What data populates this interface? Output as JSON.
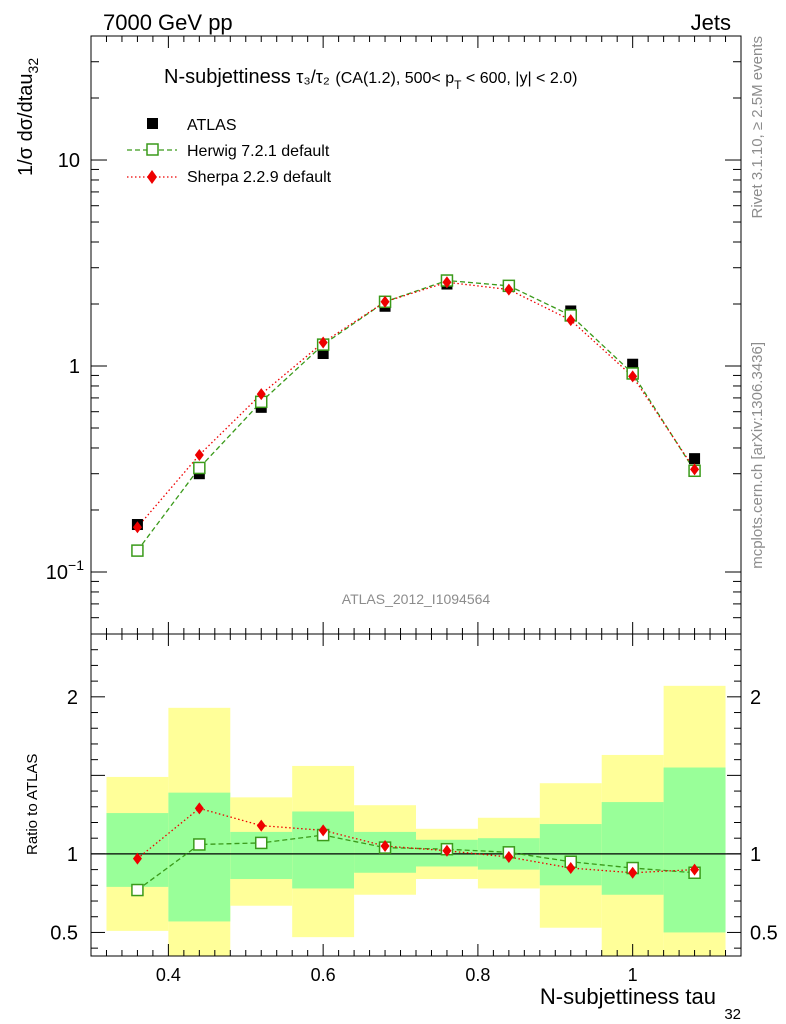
{
  "header": {
    "left": "7000 GeV pp",
    "right": "Jets"
  },
  "side": {
    "rivet": "Rivet 3.1.10, ≥ 2.5M events",
    "mcplots": "mcplots.cern.ch [arXiv:1306.3436]"
  },
  "colors": {
    "atlas": "#000000",
    "herwig": "#3a9a1a",
    "sherpa": "#ee0000",
    "band_inner": "#99ff99",
    "band_outer": "#ffff99"
  },
  "chart_data": [
    {
      "type": "scatter",
      "title": "N-subjettiness τ₃/τ₂ (CA(1.2), 500< p_T < 600, |y| < 2.0)",
      "title_parts": {
        "main": "N-subjettiness",
        "ratio": "τ₃/τ₂",
        "pre": "(CA(1.2), 500< p",
        "sub": "T",
        "post": " < 600, |y| < 2.0)"
      },
      "ylabel": "1/σ dσ/dtau",
      "ylabel_sub": "32",
      "xlabel": "N-subjettiness tau",
      "xlabel_sub": "32",
      "yscale": "log",
      "ylim": [
        0.05,
        40
      ],
      "xlim": [
        0.3,
        1.14
      ],
      "yticks": [
        {
          "v": 0.1,
          "base": "10",
          "exp": "−1"
        },
        {
          "v": 1,
          "base": "1",
          "exp": ""
        },
        {
          "v": 10,
          "base": "10",
          "exp": ""
        }
      ],
      "watermark": "ATLAS_2012_I1094564",
      "legend_position": "top-left",
      "x": [
        0.36,
        0.44,
        0.52,
        0.6,
        0.68,
        0.76,
        0.84,
        0.92,
        1.0,
        1.08
      ],
      "series": [
        {
          "name": "ATLAS",
          "marker": "filled-square",
          "values": [
            0.17,
            0.3,
            0.63,
            1.15,
            1.95,
            2.5,
            2.45,
            1.85,
            1.02,
            0.355
          ]
        },
        {
          "name": "Herwig 7.2.1 default",
          "marker": "open-square",
          "line": "dashed",
          "values": [
            0.127,
            0.32,
            0.67,
            1.27,
            2.05,
            2.6,
            2.45,
            1.76,
            0.92,
            0.31
          ]
        },
        {
          "name": "Sherpa 2.2.9 default",
          "marker": "diamond",
          "line": "dotted",
          "values": [
            0.165,
            0.37,
            0.73,
            1.3,
            2.05,
            2.55,
            2.35,
            1.67,
            0.89,
            0.315
          ]
        }
      ]
    },
    {
      "type": "scatter",
      "ylabel": "Ratio to ATLAS",
      "xlabel": "N-subjettiness tau",
      "ylim": [
        0.35,
        2.4
      ],
      "xlim": [
        0.3,
        1.14
      ],
      "xticks": [
        {
          "v": 0.4,
          "label": "0.4"
        },
        {
          "v": 0.6,
          "label": "0.6"
        },
        {
          "v": 0.8,
          "label": "0.8"
        },
        {
          "v": 1.0,
          "label": "1"
        }
      ],
      "yticks": [
        {
          "v": 0.5,
          "label": "0.5"
        },
        {
          "v": 1,
          "label": "1"
        },
        {
          "v": 2,
          "label": "2"
        }
      ],
      "bins": [
        {
          "lo": 0.32,
          "hi": 0.4,
          "inner": [
            0.79,
            1.26
          ],
          "outer": [
            0.51,
            1.49
          ]
        },
        {
          "lo": 0.4,
          "hi": 0.48,
          "inner": [
            0.57,
            1.39
          ],
          "outer": [
            0.3,
            1.93
          ]
        },
        {
          "lo": 0.48,
          "hi": 0.56,
          "inner": [
            0.84,
            1.14
          ],
          "outer": [
            0.67,
            1.36
          ]
        },
        {
          "lo": 0.56,
          "hi": 0.64,
          "inner": [
            0.78,
            1.27
          ],
          "outer": [
            0.47,
            1.56
          ]
        },
        {
          "lo": 0.64,
          "hi": 0.72,
          "inner": [
            0.88,
            1.14
          ],
          "outer": [
            0.74,
            1.31
          ]
        },
        {
          "lo": 0.72,
          "hi": 0.8,
          "inner": [
            0.92,
            1.09
          ],
          "outer": [
            0.84,
            1.16
          ]
        },
        {
          "lo": 0.8,
          "hi": 0.88,
          "inner": [
            0.9,
            1.1
          ],
          "outer": [
            0.78,
            1.23
          ]
        },
        {
          "lo": 0.88,
          "hi": 0.96,
          "inner": [
            0.8,
            1.19
          ],
          "outer": [
            0.53,
            1.45
          ]
        },
        {
          "lo": 0.96,
          "hi": 1.04,
          "inner": [
            0.74,
            1.33
          ],
          "outer": [
            0.3,
            1.63
          ]
        },
        {
          "lo": 1.04,
          "hi": 1.12,
          "inner": [
            0.5,
            1.55
          ],
          "outer": [
            0.3,
            2.07
          ]
        }
      ],
      "x": [
        0.36,
        0.44,
        0.52,
        0.6,
        0.68,
        0.76,
        0.84,
        0.92,
        1.0,
        1.08
      ],
      "series": [
        {
          "name": "Herwig 7.2.1 default",
          "values": [
            0.77,
            1.06,
            1.07,
            1.12,
            1.04,
            1.03,
            1.01,
            0.95,
            0.91,
            0.88
          ]
        },
        {
          "name": "Sherpa 2.2.9 default",
          "values": [
            0.97,
            1.29,
            1.18,
            1.15,
            1.05,
            1.02,
            0.98,
            0.91,
            0.88,
            0.9
          ]
        }
      ]
    }
  ]
}
